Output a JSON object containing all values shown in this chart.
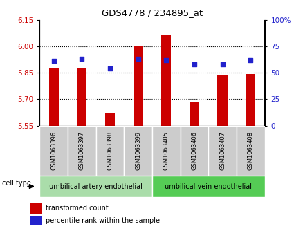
{
  "title": "GDS4778 / 234895_at",
  "samples": [
    "GSM1063396",
    "GSM1063397",
    "GSM1063398",
    "GSM1063399",
    "GSM1063405",
    "GSM1063406",
    "GSM1063407",
    "GSM1063408"
  ],
  "bar_values": [
    5.875,
    5.878,
    5.622,
    6.002,
    6.065,
    5.685,
    5.834,
    5.845
  ],
  "percentile_values": [
    61,
    63,
    54,
    63,
    62,
    58,
    58,
    62
  ],
  "ymin": 5.55,
  "ymax": 6.15,
  "yticks_left": [
    5.55,
    5.7,
    5.85,
    6.0,
    6.15
  ],
  "yticks_right": [
    0,
    25,
    50,
    75,
    100
  ],
  "bar_color": "#cc0000",
  "blue_color": "#2222cc",
  "bar_width": 0.35,
  "group1_label": "umbilical artery endothelial",
  "group2_label": "umbilical vein endothelial",
  "cell_type_label": "cell type",
  "legend_bar_label": "transformed count",
  "legend_dot_label": "percentile rank within the sample",
  "group1_color": "#aaddaa",
  "group2_color": "#55cc55",
  "sample_box_color": "#cccccc",
  "bg_plot": "#ffffff"
}
